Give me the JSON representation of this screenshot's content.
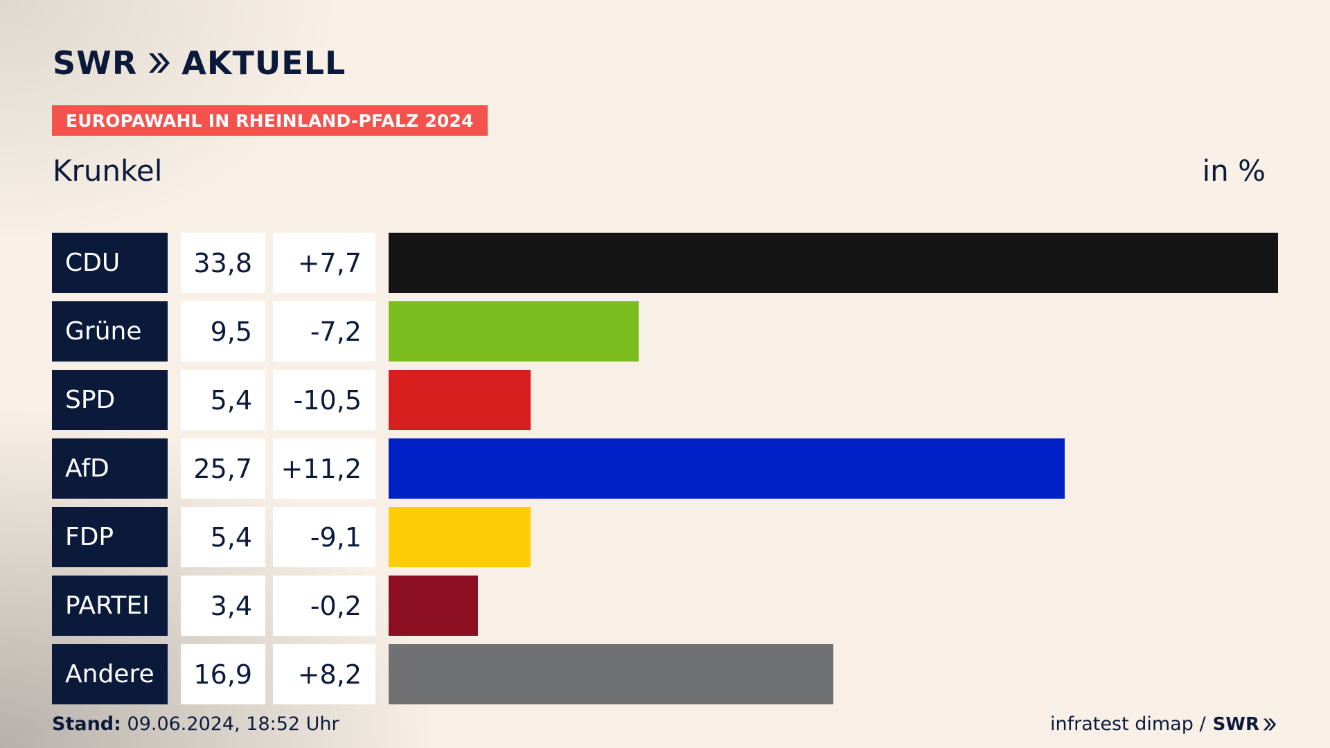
{
  "header": {
    "logo_text": "SWR",
    "logo_text2": "AKTUELL",
    "badge": "EUROPAWAHL IN RHEINLAND-PFALZ 2024",
    "place": "Krunkel",
    "unit": "in %"
  },
  "chart_data": {
    "type": "bar",
    "categories": [
      "CDU",
      "Grüne",
      "SPD",
      "AfD",
      "FDP",
      "PARTEI",
      "Andere"
    ],
    "values": [
      33.8,
      9.5,
      5.4,
      25.7,
      5.4,
      3.4,
      16.9
    ],
    "value_labels": [
      "33,8",
      "9,5",
      "5,4",
      "25,7",
      "5,4",
      "3,4",
      "16,9"
    ],
    "diff_labels": [
      "+7,7",
      "-7,2",
      "-10,5",
      "+11,2",
      "-9,1",
      "-0,2",
      "+8,2"
    ],
    "colors": [
      "#141414",
      "#7bbd1e",
      "#d81f1f",
      "#0021c8",
      "#fecd07",
      "#8c0f21",
      "#707173"
    ],
    "xlim": [
      0,
      33.8
    ],
    "title": "Krunkel",
    "unit": "in %"
  },
  "footer": {
    "stand_label": "Stand:",
    "stand_value": "09.06.2024, 18:52 Uhr",
    "source": "infratest dimap /",
    "source_logo": "SWR"
  }
}
